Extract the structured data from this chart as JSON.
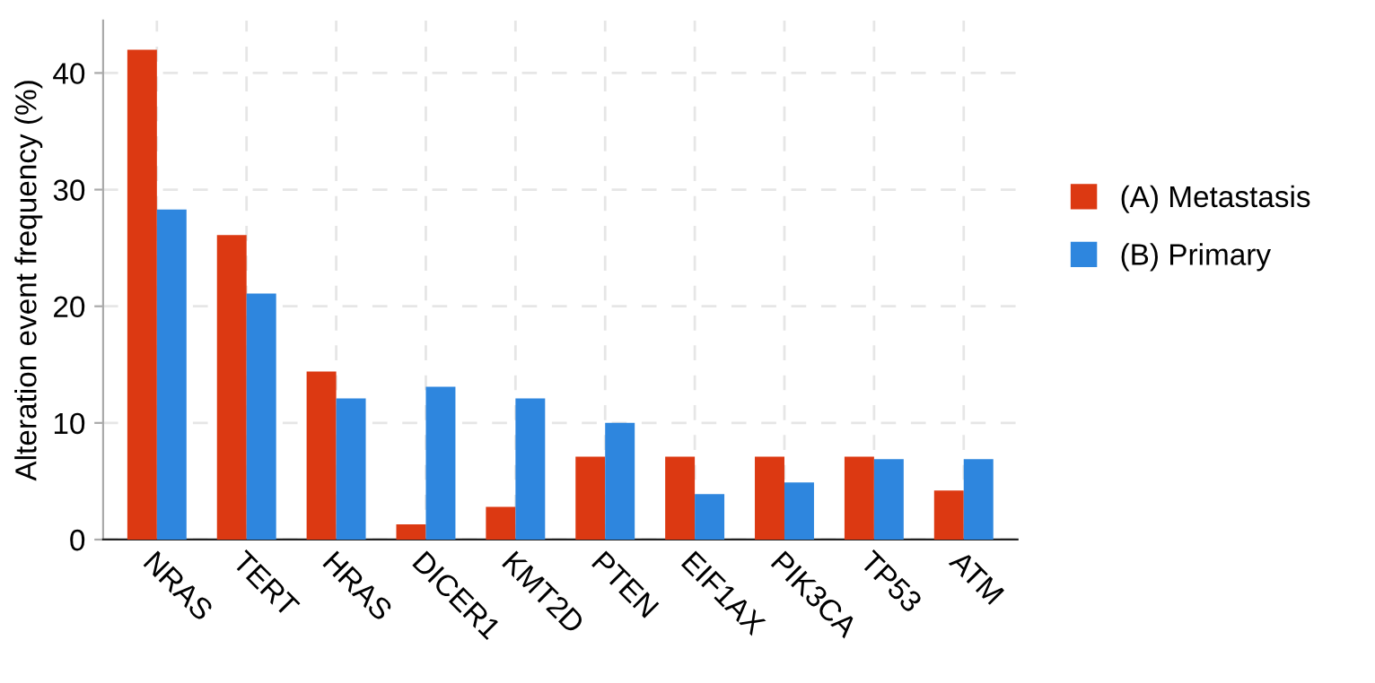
{
  "chart_data": {
    "type": "bar",
    "ylabel": "Alteration event frequency (%)",
    "categories": [
      "NRAS",
      "TERT",
      "HRAS",
      "DICER1",
      "KMT2D",
      "PTEN",
      "EIF1AX",
      "PIK3CA",
      "TP53",
      "ATM"
    ],
    "series": [
      {
        "name": "(A) Metastasis",
        "color": "#dc3912",
        "values": [
          42.0,
          26.1,
          14.4,
          1.3,
          2.8,
          7.1,
          7.1,
          7.1,
          7.1,
          4.2
        ]
      },
      {
        "name": "(B) Primary",
        "color": "#2e86de",
        "values": [
          28.3,
          21.1,
          12.1,
          13.1,
          12.1,
          10.0,
          3.9,
          4.9,
          6.9,
          6.9
        ]
      }
    ],
    "ylim": [
      0,
      44.5
    ],
    "yticks": [
      0,
      10,
      20,
      30,
      40
    ],
    "grid": true,
    "legend": "right"
  }
}
